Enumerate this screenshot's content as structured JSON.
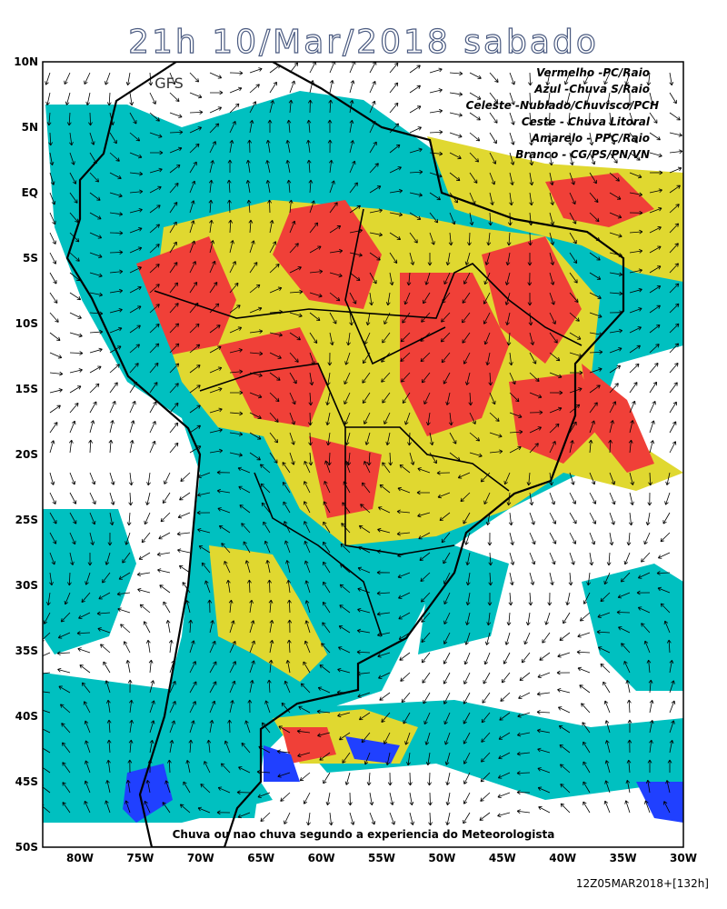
{
  "header": {
    "title": "21h 10/Mar/2018 sabado"
  },
  "map": {
    "model": "GFS",
    "legend": [
      "Vermelho -PC/Raio",
      "Azul -Chuva S/Raio",
      "Celeste -Nublado/Chuvisco/PCH",
      "Ceste - Chuva Litoral",
      "Amarelo - PPC/Raio",
      "Branco - CG/PS/PN/VN"
    ],
    "lat_labels": [
      "10N",
      "5N",
      "EQ",
      "5S",
      "10S",
      "15S",
      "20S",
      "25S",
      "30S",
      "35S",
      "40S",
      "45S",
      "50S"
    ],
    "lon_labels": [
      "80W",
      "75W",
      "70W",
      "65W",
      "60W",
      "55W",
      "50W",
      "45W",
      "40W",
      "35W",
      "30W"
    ]
  },
  "footer": {
    "caption": "Chuva ou nao chuva segundo a experiencia do Meteorologista",
    "run": "12Z05MAR2018+[132h]"
  }
}
